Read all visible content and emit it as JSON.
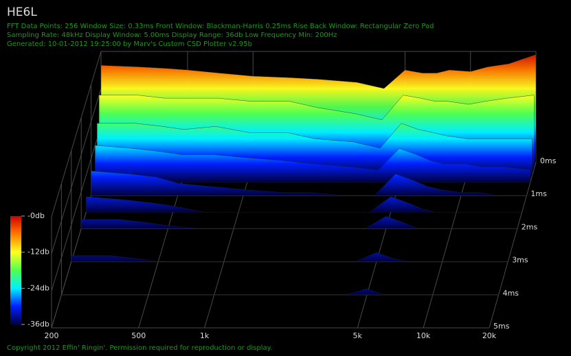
{
  "chart_data": {
    "type": "waterfall",
    "title": "HE6L",
    "info_lines": [
      "FFT Data Points: 256  Window Size: 0.33ms   Front Window: Blackman-Harris 0.25ms Rise   Back Window: Rectangular Zero Pad",
      "Sampling Rate: 48kHz  Display Window: 5.00ms   Display Range: 36db  Low Frequency Min: 200Hz",
      "Generated: 10-01-2012 19:25:00 by Marv's Custom CSD Plotter v2.95b"
    ],
    "footer": "Copyright 2012 Effin' Ringin'. Permission required for reproduction or display.",
    "x": [
      200,
      300,
      400,
      500,
      700,
      1000,
      1500,
      2000,
      3000,
      4000,
      5000,
      6000,
      7000,
      8000,
      10000,
      12000,
      15000,
      20000
    ],
    "xlim": [
      200,
      20000
    ],
    "xscale": "log",
    "xticks": [
      200,
      500,
      {
        "value": 1000,
        "label": "1k"
      },
      {
        "value": 5000,
        "label": "5k"
      },
      {
        "value": 10000,
        "label": "10k"
      },
      {
        "value": 20000,
        "label": "20k"
      }
    ],
    "tlim": [
      0,
      5
    ],
    "tticks": [
      {
        "value": 0,
        "label": "0ms"
      },
      {
        "value": 1,
        "label": "1ms"
      },
      {
        "value": 2,
        "label": "2ms"
      },
      {
        "value": 3,
        "label": "3ms"
      },
      {
        "value": 4,
        "label": "4ms"
      },
      {
        "value": 5,
        "label": "5ms"
      }
    ],
    "zlim": [
      -36,
      0
    ],
    "zticks": [
      {
        "value": 0,
        "label": "-0db"
      },
      {
        "value": -12,
        "label": "-12db"
      },
      {
        "value": -24,
        "label": "-24db"
      },
      {
        "value": -36,
        "label": "-36db"
      }
    ],
    "colorscale": [
      "#d00000",
      "#ff7a00",
      "#ffff20",
      "#50ff50",
      "#00f0ff",
      "#0020ff",
      "#000040"
    ],
    "grid": true,
    "series": [
      {
        "time": 0,
        "values": [
          -4.5,
          -5,
          -5.5,
          -6,
          -7,
          -8,
          -8.5,
          -9,
          -10,
          -12,
          -6,
          -7,
          -7,
          -6,
          -6.5,
          -5,
          -4,
          -1
        ]
      },
      {
        "time": 0.2,
        "values": [
          -12,
          -12,
          -13,
          -13,
          -13,
          -14,
          -14,
          -16,
          -18,
          -20,
          -12,
          -13,
          -14,
          -14,
          -15,
          -14,
          -13,
          -12
        ]
      },
      {
        "time": 0.4,
        "values": [
          -19,
          -19,
          -20,
          -21,
          -20,
          -22,
          -22,
          -24,
          -25,
          -27,
          -19,
          -21,
          -22,
          -23,
          -24,
          -24,
          -24,
          -24
        ]
      },
      {
        "time": 0.6,
        "values": [
          -24,
          -25,
          -26,
          -27,
          -27,
          -28,
          -29,
          -30,
          -31,
          -32,
          -25,
          -27,
          -29,
          -30,
          -30,
          -31,
          -31,
          -32
        ]
      },
      {
        "time": 1,
        "values": [
          -28,
          -29,
          -30,
          -32,
          -33,
          -34,
          -35,
          -35,
          -36,
          -36,
          -29,
          -31,
          -33,
          -34,
          -35,
          -35,
          -36,
          -36
        ]
      },
      {
        "time": 1.5,
        "values": [
          -31,
          -32,
          -33,
          -34,
          -36,
          -36,
          -36,
          -36,
          -36,
          -36,
          -31,
          -33,
          -35,
          -36,
          -36,
          -36,
          -36,
          -36
        ]
      },
      {
        "time": 2,
        "values": [
          -33,
          -33,
          -34,
          -35,
          -36,
          -36,
          -36,
          -36,
          -36,
          -36,
          -32,
          -34,
          -36,
          -36,
          -36,
          -36,
          -36,
          -36
        ]
      },
      {
        "time": 3,
        "values": [
          -34,
          -34,
          -35,
          -36,
          -36,
          -36,
          -36,
          -36,
          -36,
          -36,
          -33,
          -35,
          -36,
          -36,
          -36,
          -36,
          -36,
          -36
        ]
      },
      {
        "time": 4,
        "values": [
          -36,
          -36,
          -36,
          -36,
          -36,
          -36,
          -36,
          -36,
          -36,
          -36,
          -34,
          -36,
          -36,
          -36,
          -36,
          -36,
          -36,
          -36
        ]
      }
    ]
  }
}
